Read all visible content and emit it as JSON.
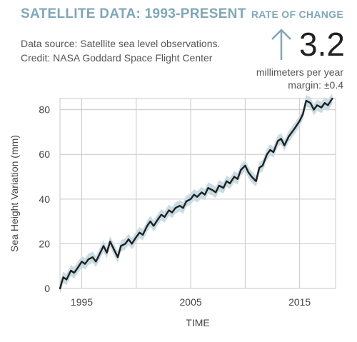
{
  "header": {
    "title": "SATELLITE DATA: 1993-PRESENT",
    "source_line1": "Data source: Satellite sea level observations.",
    "source_line2": "Credit: NASA Goddard Space Flight Center"
  },
  "rate": {
    "label": "RATE OF CHANGE",
    "arrow_icon": "up-arrow-icon",
    "value": "3.2",
    "unit": "millimeters per year",
    "margin": "margin: ±0.4"
  },
  "colors": {
    "accent": "#7fa7b8",
    "line": "#1f1f1f",
    "band": "#c9dce4",
    "grid": "#c8c8c8"
  },
  "chart_data": {
    "type": "line",
    "title": "",
    "xlabel": "TIME",
    "ylabel": "Sea Height Variation (mm)",
    "xlim": [
      1993,
      2018.3
    ],
    "ylim": [
      0,
      85
    ],
    "xticks": [
      1995,
      2005,
      2015
    ],
    "yticks": [
      0,
      20,
      40,
      60,
      80
    ],
    "grid": true,
    "series": [
      {
        "uncertainty_mm": 2.5,
        "x": [
          1993.0,
          1993.3,
          1993.6,
          1994.0,
          1994.3,
          1994.6,
          1995.0,
          1995.3,
          1995.6,
          1996.0,
          1996.3,
          1996.6,
          1997.0,
          1997.3,
          1997.6,
          1998.0,
          1998.3,
          1998.6,
          1999.0,
          1999.3,
          1999.6,
          2000.0,
          2000.3,
          2000.6,
          2001.0,
          2001.3,
          2001.6,
          2002.0,
          2002.3,
          2002.6,
          2003.0,
          2003.3,
          2003.6,
          2004.0,
          2004.3,
          2004.6,
          2005.0,
          2005.3,
          2005.6,
          2006.0,
          2006.3,
          2006.6,
          2007.0,
          2007.3,
          2007.6,
          2008.0,
          2008.3,
          2008.6,
          2009.0,
          2009.3,
          2009.6,
          2010.0,
          2010.3,
          2010.6,
          2011.0,
          2011.3,
          2011.6,
          2012.0,
          2012.3,
          2012.6,
          2013.0,
          2013.3,
          2013.6,
          2014.0,
          2014.3,
          2014.6,
          2015.0,
          2015.3,
          2015.6,
          2016.0,
          2016.3,
          2016.6,
          2017.0,
          2017.3,
          2017.6,
          2018.0
        ],
        "values": [
          0,
          5,
          4,
          8,
          7,
          9,
          12,
          11,
          13,
          14,
          12,
          15,
          19,
          16,
          21,
          17,
          14,
          19,
          20,
          22,
          20,
          23,
          25,
          24,
          28,
          30,
          28,
          31,
          33,
          32,
          35,
          34,
          36,
          37,
          36,
          39,
          40,
          42,
          41,
          43,
          42,
          45,
          44,
          43,
          46,
          45,
          48,
          47,
          50,
          49,
          53,
          55,
          52,
          50,
          48,
          54,
          55,
          60,
          62,
          61,
          66,
          67,
          64,
          68,
          70,
          72,
          75,
          78,
          84,
          83,
          80,
          82,
          81,
          83,
          82,
          85
        ]
      }
    ]
  }
}
